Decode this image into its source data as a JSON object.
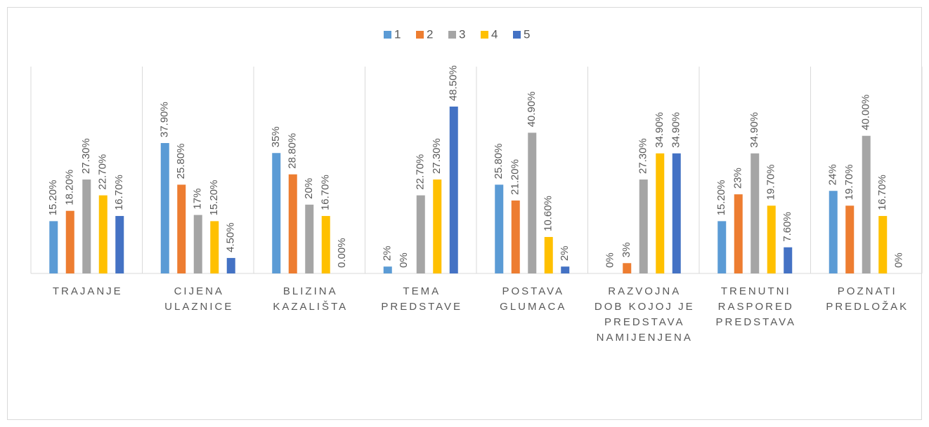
{
  "chart_data": {
    "type": "bar",
    "categories": [
      "TRAJANJE",
      "CIJENA ULAZNICE",
      "BLIZINA KAZALIŠTA",
      "TEMA PREDSTAVE",
      "POSTAVA GLUMACA",
      "RAZVOJNA DOB KOJOJ JE PREDSTAVA NAMIJENJENA",
      "TRENUTNI RASPORED PREDSTAVA",
      "POZNATI PREDLOŽAK"
    ],
    "series": [
      {
        "name": "1",
        "color": "#5b9bd5",
        "values": [
          15.2,
          37.9,
          35,
          2,
          25.8,
          0,
          15.2,
          24
        ],
        "value_labels": [
          "15.20%",
          "37.90%",
          "35%",
          "2%",
          "25.80%",
          "0%",
          "15.20%",
          "24%"
        ]
      },
      {
        "name": "2",
        "color": "#ed7d31",
        "values": [
          18.2,
          25.8,
          28.8,
          0,
          21.2,
          3,
          23,
          19.7
        ],
        "value_labels": [
          "18.20%",
          "25.80%",
          "28.80%",
          "0%",
          "21.20%",
          "3%",
          "23%",
          "19.70%"
        ]
      },
      {
        "name": "3",
        "color": "#a5a5a5",
        "values": [
          27.3,
          17,
          20,
          22.7,
          40.9,
          27.3,
          34.9,
          40
        ],
        "value_labels": [
          "27.30%",
          "17%",
          "20%",
          "22.70%",
          "40.90%",
          "27.30%",
          "34.90%",
          "40.00%"
        ]
      },
      {
        "name": "4",
        "color": "#ffc000",
        "values": [
          22.7,
          15.2,
          16.7,
          27.3,
          10.6,
          34.9,
          19.7,
          16.7
        ],
        "value_labels": [
          "22.70%",
          "15.20%",
          "16.70%",
          "27.30%",
          "10.60%",
          "34.90%",
          "19.70%",
          "16.70%"
        ]
      },
      {
        "name": "5",
        "color": "#4472c4",
        "values": [
          16.7,
          4.5,
          0,
          48.5,
          2,
          34.9,
          7.6,
          0
        ],
        "value_labels": [
          "16.70%",
          "4.50%",
          "0.00%",
          "48.50%",
          "2%",
          "34.90%",
          "7.60%",
          "0%"
        ]
      }
    ],
    "legend": "top"
  }
}
